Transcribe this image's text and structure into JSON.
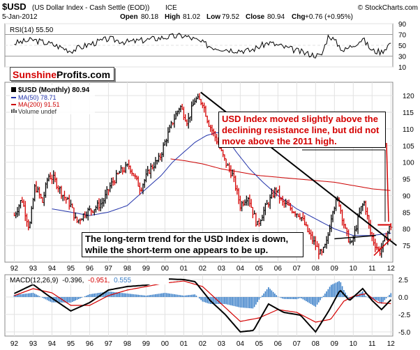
{
  "header": {
    "symbol": "$USD",
    "description": "(US Dollar Index - Cash Settle (EOD))",
    "exchange": "ICE",
    "date": "5-Jan-2012",
    "quote": {
      "open_label": "Open",
      "open": "80.18",
      "high_label": "High",
      "high": "81.02",
      "low_label": "Low",
      "low": "79.52",
      "close_label": "Close",
      "close": "80.94",
      "chg_label": "Chg",
      "chg": "+0.76 (+0.95%)"
    },
    "copyright": "© StockCharts.com"
  },
  "brand": {
    "part1": "Sunshine",
    "part2": "Profits.com"
  },
  "legend": {
    "price": "$USD (Monthly) 80.94",
    "ma50": "MA(50) 78.71",
    "ma200": "MA(200) 91.51",
    "volume": "Volume undef"
  },
  "rsi_panel": {
    "label": "RSI(14) 55.50",
    "ticks": [
      "90",
      "70",
      "50",
      "30",
      "10"
    ]
  },
  "macd_panel": {
    "label_prefix": "MACD(12,26,9)",
    "macd": "-0.396,",
    "signal": "-0.951,",
    "hist": "0.555",
    "ticks": [
      "2.5",
      "0.0",
      "-2.5",
      "-5.0"
    ]
  },
  "callouts": {
    "resistance": "USD Index moved slightly above the declining resistance line, but did not move above the 2011 high.",
    "trend": "The long-term trend for the USD Index is down, while the short-term one appears to be up."
  },
  "colors": {
    "price_up": "#000000",
    "price_down": "#d40000",
    "ma50": "#2233aa",
    "ma200": "#cc0000",
    "macd_hist": "#3a7fc8",
    "annotation": "#d40000"
  },
  "chart_data": [
    {
      "type": "bar",
      "title": "$USD (Monthly)",
      "x": [
        "92",
        "93",
        "94",
        "95",
        "96",
        "97",
        "98",
        "99",
        "00",
        "01",
        "02",
        "03",
        "04",
        "05",
        "06",
        "07",
        "08",
        "09",
        "10",
        "11",
        "12"
      ],
      "ylim": [
        70,
        124
      ],
      "yticks": [
        75,
        80,
        85,
        90,
        95,
        100,
        105,
        110,
        115,
        120
      ],
      "grid": true,
      "legend_position": "top-left",
      "price_path": [
        [
          1992,
          84
        ],
        [
          1992.4,
          89
        ],
        [
          1992.8,
          80
        ],
        [
          1993.1,
          93
        ],
        [
          1993.5,
          88
        ],
        [
          1993.8,
          96
        ],
        [
          1994.1,
          95
        ],
        [
          1994.6,
          90
        ],
        [
          1995.0,
          87
        ],
        [
          1995.3,
          82
        ],
        [
          1995.8,
          85
        ],
        [
          1996.2,
          86
        ],
        [
          1996.7,
          88
        ],
        [
          1997.1,
          93
        ],
        [
          1997.6,
          97
        ],
        [
          1998.1,
          99
        ],
        [
          1998.7,
          92
        ],
        [
          1999.2,
          98
        ],
        [
          1999.7,
          101
        ],
        [
          2000.0,
          106
        ],
        [
          2000.4,
          112
        ],
        [
          2000.8,
          117
        ],
        [
          2001.2,
          112
        ],
        [
          2001.6,
          119
        ],
        [
          2002.0,
          118
        ],
        [
          2002.3,
          112
        ],
        [
          2002.8,
          106
        ],
        [
          2003.2,
          100
        ],
        [
          2003.6,
          96
        ],
        [
          2004.0,
          87
        ],
        [
          2004.4,
          90
        ],
        [
          2004.9,
          81
        ],
        [
          2005.3,
          86
        ],
        [
          2005.9,
          92
        ],
        [
          2006.2,
          88
        ],
        [
          2006.7,
          86
        ],
        [
          2007.2,
          84
        ],
        [
          2007.6,
          79
        ],
        [
          2007.9,
          76
        ],
        [
          2008.3,
          72
        ],
        [
          2008.6,
          76
        ],
        [
          2008.9,
          86
        ],
        [
          2009.2,
          89
        ],
        [
          2009.6,
          79
        ],
        [
          2009.9,
          75
        ],
        [
          2010.4,
          86
        ],
        [
          2010.6,
          88
        ],
        [
          2010.9,
          79
        ],
        [
          2011.1,
          76
        ],
        [
          2011.4,
          73
        ],
        [
          2011.7,
          77
        ],
        [
          2011.9,
          80
        ],
        [
          2012.0,
          80.94
        ]
      ],
      "series": [
        {
          "name": "MA(50)",
          "points": [
            [
              1994.0,
              86
            ],
            [
              1995.0,
              85
            ],
            [
              1996.0,
              84
            ],
            [
              1997.0,
              85
            ],
            [
              1998.0,
              87
            ],
            [
              1998.6,
              90
            ],
            [
              1999.2,
              93
            ],
            [
              1999.8,
              96
            ],
            [
              2000.4,
              100
            ],
            [
              2001.0,
              103
            ],
            [
              2001.6,
              106
            ],
            [
              2002.2,
              108
            ],
            [
              2002.8,
              109
            ],
            [
              2003.3,
              107
            ],
            [
              2003.8,
              103
            ],
            [
              2004.5,
              98
            ],
            [
              2005.2,
              94
            ],
            [
              2006.0,
              90
            ],
            [
              2007.0,
              86
            ],
            [
              2008.0,
              83
            ],
            [
              2009.0,
              80
            ],
            [
              2010.0,
              78
            ],
            [
              2011.0,
              78
            ],
            [
              2012.0,
              78.71
            ]
          ]
        },
        {
          "name": "MA(200)",
          "points": [
            [
              2000.3,
              101
            ],
            [
              2001.0,
              100.5
            ],
            [
              2002.0,
              99.5
            ],
            [
              2003.0,
              98
            ],
            [
              2004.0,
              97
            ],
            [
              2005.0,
              96
            ],
            [
              2006.0,
              95.5
            ],
            [
              2007.0,
              95
            ],
            [
              2008.0,
              94.5
            ],
            [
              2009.0,
              94
            ],
            [
              2010.0,
              93
            ],
            [
              2011.0,
              92
            ],
            [
              2012.0,
              91.51
            ]
          ]
        }
      ],
      "annotations": {
        "declining_resistance": [
          [
            2001.9,
            121
          ],
          [
            2012.3,
            75
          ]
        ],
        "red_support": [
          [
            2011.1,
            72
          ],
          [
            2012.0,
            77
          ]
        ],
        "horizontal_2011_high": [
          [
            2011.3,
            81.2
          ],
          [
            2012.0,
            81.2
          ]
        ],
        "black_support": [
          [
            2009.0,
            77
          ],
          [
            2011.2,
            78
          ]
        ]
      }
    },
    {
      "type": "line",
      "title": "RSI(14)",
      "ylim": [
        10,
        90
      ],
      "yticks": [
        10,
        30,
        50,
        70,
        90
      ],
      "series": [
        {
          "name": "RSI(14)",
          "points": [
            [
              1992,
              54
            ],
            [
              1993,
              60
            ],
            [
              1994,
              52
            ],
            [
              1995,
              40
            ],
            [
              1996,
              52
            ],
            [
              1997,
              62
            ],
            [
              1998,
              56
            ],
            [
              1999,
              60
            ],
            [
              2000,
              65
            ],
            [
              2001,
              68
            ],
            [
              2001.5,
              62
            ],
            [
              2002.5,
              47
            ],
            [
              2003.5,
              42
            ],
            [
              2004.5,
              40
            ],
            [
              2005.5,
              55
            ],
            [
              2006.5,
              45
            ],
            [
              2007.5,
              35
            ],
            [
              2008.3,
              30
            ],
            [
              2008.7,
              70
            ],
            [
              2009.5,
              40
            ],
            [
              2010.5,
              62
            ],
            [
              2011.0,
              40
            ],
            [
              2011.5,
              38
            ],
            [
              2012.0,
              55.5
            ]
          ]
        }
      ]
    },
    {
      "type": "line",
      "title": "MACD(12,26,9)",
      "ylim": [
        -5.6,
        3.2
      ],
      "yticks": [
        -5.0,
        -2.5,
        0.0,
        2.5
      ],
      "series": [
        {
          "name": "MACD",
          "points": [
            [
              1992,
              0.5
            ],
            [
              1993,
              1.8
            ],
            [
              1993.8,
              0.2
            ],
            [
              1995,
              -2.0
            ],
            [
              1996,
              -0.8
            ],
            [
              1997,
              1.0
            ],
            [
              1998,
              1.5
            ],
            [
              1999,
              1.7
            ],
            [
              2000,
              2.6
            ],
            [
              2001,
              2.5
            ],
            [
              2001.6,
              2.2
            ],
            [
              2002.4,
              -0.5
            ],
            [
              2003.2,
              -2.5
            ],
            [
              2004,
              -5.0
            ],
            [
              2004.7,
              -4.8
            ],
            [
              2005.5,
              -1.0
            ],
            [
              2006.3,
              -2.2
            ],
            [
              2007.2,
              -2.6
            ],
            [
              2008.0,
              -5.0
            ],
            [
              2008.7,
              -2.0
            ],
            [
              2009.3,
              1.0
            ],
            [
              2009.8,
              -0.5
            ],
            [
              2010.5,
              1.2
            ],
            [
              2011.0,
              -0.5
            ],
            [
              2011.5,
              -1.8
            ],
            [
              2012.0,
              -0.396
            ]
          ]
        },
        {
          "name": "Signal",
          "points": [
            [
              1992,
              0.2
            ],
            [
              1993,
              1.2
            ],
            [
              1994,
              0.6
            ],
            [
              1995,
              -1.2
            ],
            [
              1996,
              -1.2
            ],
            [
              1997,
              0.2
            ],
            [
              1998,
              1.0
            ],
            [
              1999,
              1.5
            ],
            [
              2000,
              2.0
            ],
            [
              2001,
              2.3
            ],
            [
              2002,
              1.5
            ],
            [
              2003,
              -1.0
            ],
            [
              2004,
              -3.5
            ],
            [
              2005,
              -3.0
            ],
            [
              2006,
              -1.8
            ],
            [
              2007,
              -2.2
            ],
            [
              2008,
              -3.6
            ],
            [
              2008.8,
              -3.2
            ],
            [
              2009.5,
              -0.6
            ],
            [
              2010,
              0.1
            ],
            [
              2010.7,
              0.5
            ],
            [
              2011.3,
              -0.8
            ],
            [
              2012.0,
              -0.951
            ]
          ]
        }
      ],
      "histogram_final": 0.555
    }
  ]
}
